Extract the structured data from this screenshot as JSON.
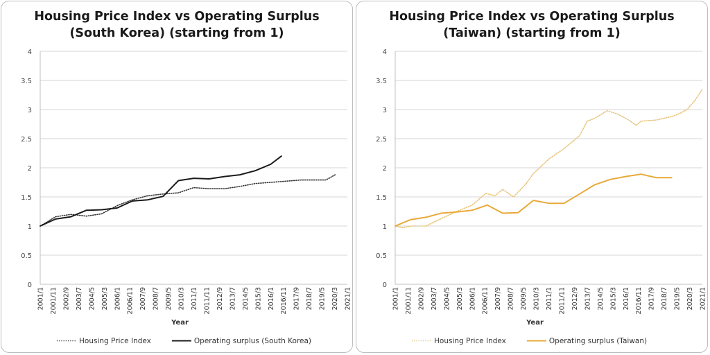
{
  "chart_data": [
    {
      "type": "line",
      "title": "Housing Price Index vs Operating Surplus (South Korea) (starting from 1)",
      "title_lines": [
        "Housing Price Index vs Operating Surplus",
        "(South Korea) (starting from 1)"
      ],
      "xlabel": "Year",
      "ylabel": "",
      "ylim": [
        0,
        4
      ],
      "yticks": [
        "0",
        "0.5",
        "1",
        "1.5",
        "2",
        "2.5",
        "3",
        "3.5",
        "4"
      ],
      "xlim": [
        2001.0,
        2021.0
      ],
      "x_tick_labels": [
        "2001/1",
        "2001/11",
        "2002/9",
        "2003/7",
        "2004/5",
        "2005/3",
        "2006/1",
        "2006/11",
        "2007/9",
        "2008/7",
        "2009/5",
        "2010/3",
        "2011/1",
        "2011/11",
        "2012/9",
        "2013/7",
        "2014/5",
        "2015/3",
        "2016/1",
        "2016/11",
        "2017/9",
        "2018/7",
        "2019/5",
        "2020/3",
        "2021/1"
      ],
      "grid": true,
      "legend_position": "bottom",
      "series": [
        {
          "name": "Housing Price Index",
          "style": "dotted",
          "color": "#333333",
          "x": [
            2001.0,
            2002.0,
            2003.0,
            2004.0,
            2005.0,
            2006.0,
            2007.0,
            2008.0,
            2009.0,
            2010.0,
            2011.0,
            2012.0,
            2013.0,
            2014.0,
            2015.0,
            2016.0,
            2017.0,
            2018.0,
            2019.0,
            2019.6,
            2020.2
          ],
          "y": [
            1.0,
            1.16,
            1.2,
            1.17,
            1.21,
            1.35,
            1.45,
            1.52,
            1.55,
            1.57,
            1.66,
            1.64,
            1.64,
            1.68,
            1.73,
            1.75,
            1.77,
            1.79,
            1.79,
            1.79,
            1.88
          ]
        },
        {
          "name": "Operating surplus (South Korea)",
          "style": "solid",
          "color": "#1a1a1a",
          "x": [
            2001.0,
            2002.0,
            2003.0,
            2004.0,
            2005.0,
            2006.0,
            2007.0,
            2008.0,
            2009.0,
            2010.0,
            2011.0,
            2012.0,
            2013.0,
            2014.0,
            2015.0,
            2016.0,
            2016.7
          ],
          "y": [
            1.0,
            1.12,
            1.16,
            1.27,
            1.28,
            1.31,
            1.43,
            1.45,
            1.51,
            1.78,
            1.82,
            1.81,
            1.85,
            1.88,
            1.95,
            2.06,
            2.2
          ]
        }
      ]
    },
    {
      "type": "line",
      "title": "Housing Price Index vs Operating Surplus (Taiwan) (starting from 1)",
      "title_lines": [
        "Housing Price Index vs Operating Surplus",
        "(Taiwan) (starting from 1)"
      ],
      "xlabel": "Year",
      "ylabel": "",
      "ylim": [
        0,
        4
      ],
      "yticks": [
        "0",
        "0.5",
        "1",
        "1.5",
        "2",
        "2.5",
        "3",
        "3.5",
        "4"
      ],
      "xlim": [
        2001.0,
        2021.0
      ],
      "x_tick_labels": [
        "2001/1",
        "2001/11",
        "2002/9",
        "2003/7",
        "2004/5",
        "2005/3",
        "2006/1",
        "2006/11",
        "2007/9",
        "2008/7",
        "2009/5",
        "2010/3",
        "2011/1",
        "2011/11",
        "2012/9",
        "2013/7",
        "2014/5",
        "2015/3",
        "2016/1",
        "2016/11",
        "2017/9",
        "2018/7",
        "2019/5",
        "2020/3",
        "2021/1"
      ],
      "grid": true,
      "legend_position": "bottom",
      "series": [
        {
          "name": "Housing Price Index",
          "style": "dotted",
          "color": "#e8c47a",
          "x": [
            2001.0,
            2001.5,
            2002.0,
            2003.0,
            2004.0,
            2005.0,
            2006.0,
            2006.9,
            2007.5,
            2008.0,
            2008.7,
            2009.5,
            2010.0,
            2011.0,
            2012.0,
            2013.0,
            2013.5,
            2014.0,
            2014.8,
            2015.5,
            2016.2,
            2016.7,
            2017.0,
            2018.0,
            2019.0,
            2019.5,
            2020.0,
            2020.5,
            2021.0
          ],
          "y": [
            1.0,
            0.97,
            1.0,
            1.0,
            1.13,
            1.25,
            1.36,
            1.56,
            1.52,
            1.63,
            1.5,
            1.72,
            1.9,
            2.15,
            2.33,
            2.55,
            2.8,
            2.85,
            2.98,
            2.92,
            2.82,
            2.73,
            2.8,
            2.82,
            2.88,
            2.93,
            3.0,
            3.15,
            3.35
          ]
        },
        {
          "name": "Operating surplus (Taiwan)",
          "style": "solid",
          "color": "#e8a93a",
          "x": [
            2001.0,
            2002.0,
            2003.0,
            2004.0,
            2005.0,
            2006.0,
            2007.0,
            2008.0,
            2009.0,
            2010.0,
            2011.0,
            2012.0,
            2013.0,
            2014.0,
            2015.0,
            2016.0,
            2017.0,
            2018.0,
            2019.0
          ],
          "y": [
            1.0,
            1.11,
            1.15,
            1.22,
            1.24,
            1.27,
            1.36,
            1.22,
            1.23,
            1.44,
            1.39,
            1.39,
            1.55,
            1.71,
            1.8,
            1.85,
            1.89,
            1.83,
            1.83
          ]
        }
      ]
    }
  ]
}
